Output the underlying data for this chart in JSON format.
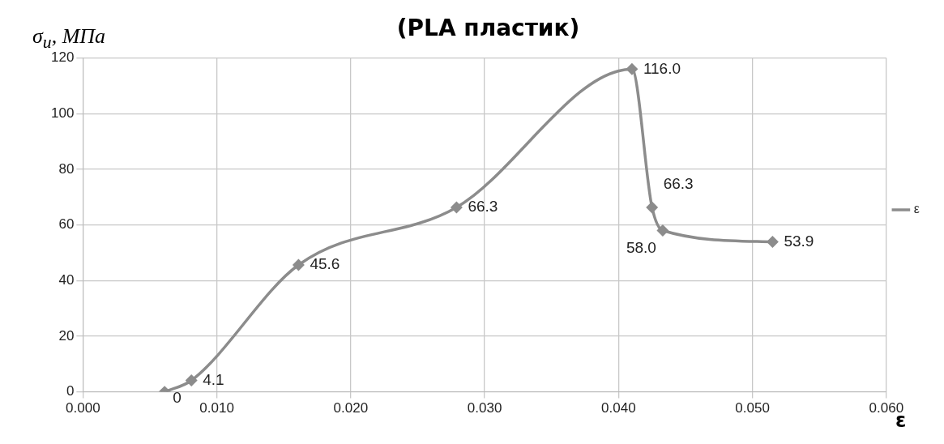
{
  "chart_data": {
    "type": "line",
    "title": "(PLA пластик)",
    "xlabel": "ε",
    "ylabel": "σ$_{u}$, МПа",
    "x": [
      0.0061,
      0.0081,
      0.0161,
      0.0279,
      0.041,
      0.0425,
      0.0433,
      0.0515
    ],
    "series": [
      {
        "name": "ε",
        "color": "#8c8c8c",
        "values": [
          0,
          4.1,
          45.6,
          66.3,
          116.0,
          66.3,
          58.0,
          53.9
        ],
        "value_labels": [
          "0",
          "4.1",
          "45.6",
          "66.3",
          "116.0",
          "66.3",
          "58.0",
          "53.9"
        ]
      }
    ],
    "xlim": [
      0,
      0.06
    ],
    "xticks": [
      {
        "value": 0,
        "label": "0.000"
      },
      {
        "value": 0.01,
        "label": "0.010"
      },
      {
        "value": 0.02,
        "label": "0.020"
      },
      {
        "value": 0.03,
        "label": "0.030"
      },
      {
        "value": 0.04,
        "label": "0.040"
      },
      {
        "value": 0.05,
        "label": "0.050"
      },
      {
        "value": 0.06,
        "label": "0.060"
      }
    ],
    "ylim": [
      0,
      120
    ],
    "yticks": [
      0,
      20,
      40,
      60,
      80,
      100,
      120
    ],
    "grid": true,
    "legend": "right",
    "marker": "diamond",
    "line_style": "solid"
  }
}
